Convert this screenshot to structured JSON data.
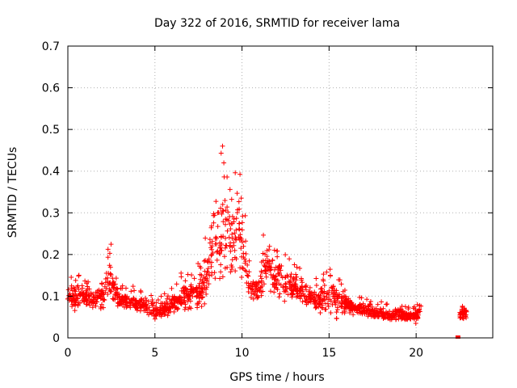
{
  "chart_data": {
    "type": "scatter",
    "title": "Day 322 of 2016, SRMTID for receiver lama",
    "xlabel": "GPS time / hours",
    "ylabel": "SRMTID / TECUs",
    "xlim": [
      0,
      24.4
    ],
    "ylim": [
      0,
      0.7
    ],
    "grid": true,
    "x_ticks": [
      0,
      5,
      10,
      15,
      20
    ],
    "y_ticks": [
      0,
      0.1,
      0.2,
      0.3,
      0.4,
      0.5,
      0.6,
      0.7
    ],
    "marker": "+",
    "color": "#ff0000",
    "profile_note": "approximate envelope of the dense scatter, read from the gridlines",
    "profile": {
      "x": [
        0.0,
        0.5,
        1.0,
        1.5,
        2.0,
        2.4,
        2.6,
        3.0,
        3.5,
        4.0,
        4.5,
        5.0,
        5.5,
        6.0,
        6.5,
        7.0,
        7.5,
        8.0,
        8.3,
        8.6,
        8.9,
        9.2,
        9.5,
        9.8,
        10.0,
        10.3,
        10.6,
        10.9,
        11.2,
        11.5,
        11.8,
        12.1,
        12.5,
        13.0,
        13.5,
        14.0,
        14.4,
        14.7,
        15.0,
        15.3,
        15.6,
        16.0,
        16.5,
        17.0,
        17.5,
        18.0,
        18.5,
        19.0,
        19.5,
        20.0,
        20.3
      ],
      "center": [
        0.1,
        0.1,
        0.1,
        0.09,
        0.1,
        0.14,
        0.12,
        0.09,
        0.09,
        0.08,
        0.08,
        0.06,
        0.07,
        0.08,
        0.1,
        0.1,
        0.11,
        0.15,
        0.22,
        0.25,
        0.28,
        0.27,
        0.25,
        0.28,
        0.22,
        0.15,
        0.12,
        0.11,
        0.15,
        0.17,
        0.15,
        0.15,
        0.13,
        0.12,
        0.11,
        0.1,
        0.09,
        0.1,
        0.1,
        0.09,
        0.09,
        0.08,
        0.07,
        0.07,
        0.06,
        0.06,
        0.05,
        0.06,
        0.05,
        0.05,
        0.07
      ],
      "spread": [
        0.03,
        0.04,
        0.04,
        0.03,
        0.04,
        0.08,
        0.05,
        0.03,
        0.03,
        0.03,
        0.03,
        0.02,
        0.03,
        0.03,
        0.04,
        0.04,
        0.05,
        0.09,
        0.13,
        0.14,
        0.17,
        0.19,
        0.16,
        0.14,
        0.12,
        0.07,
        0.05,
        0.04,
        0.08,
        0.09,
        0.07,
        0.06,
        0.05,
        0.04,
        0.04,
        0.03,
        0.04,
        0.08,
        0.04,
        0.08,
        0.05,
        0.03,
        0.02,
        0.02,
        0.02,
        0.02,
        0.02,
        0.02,
        0.02,
        0.02,
        0.02
      ],
      "extra_segment": {
        "x": [
          22.5,
          22.9
        ],
        "center": 0.06,
        "spread": 0.02
      },
      "isolated_points": [
        [
          22.4,
          0.0
        ]
      ]
    }
  }
}
